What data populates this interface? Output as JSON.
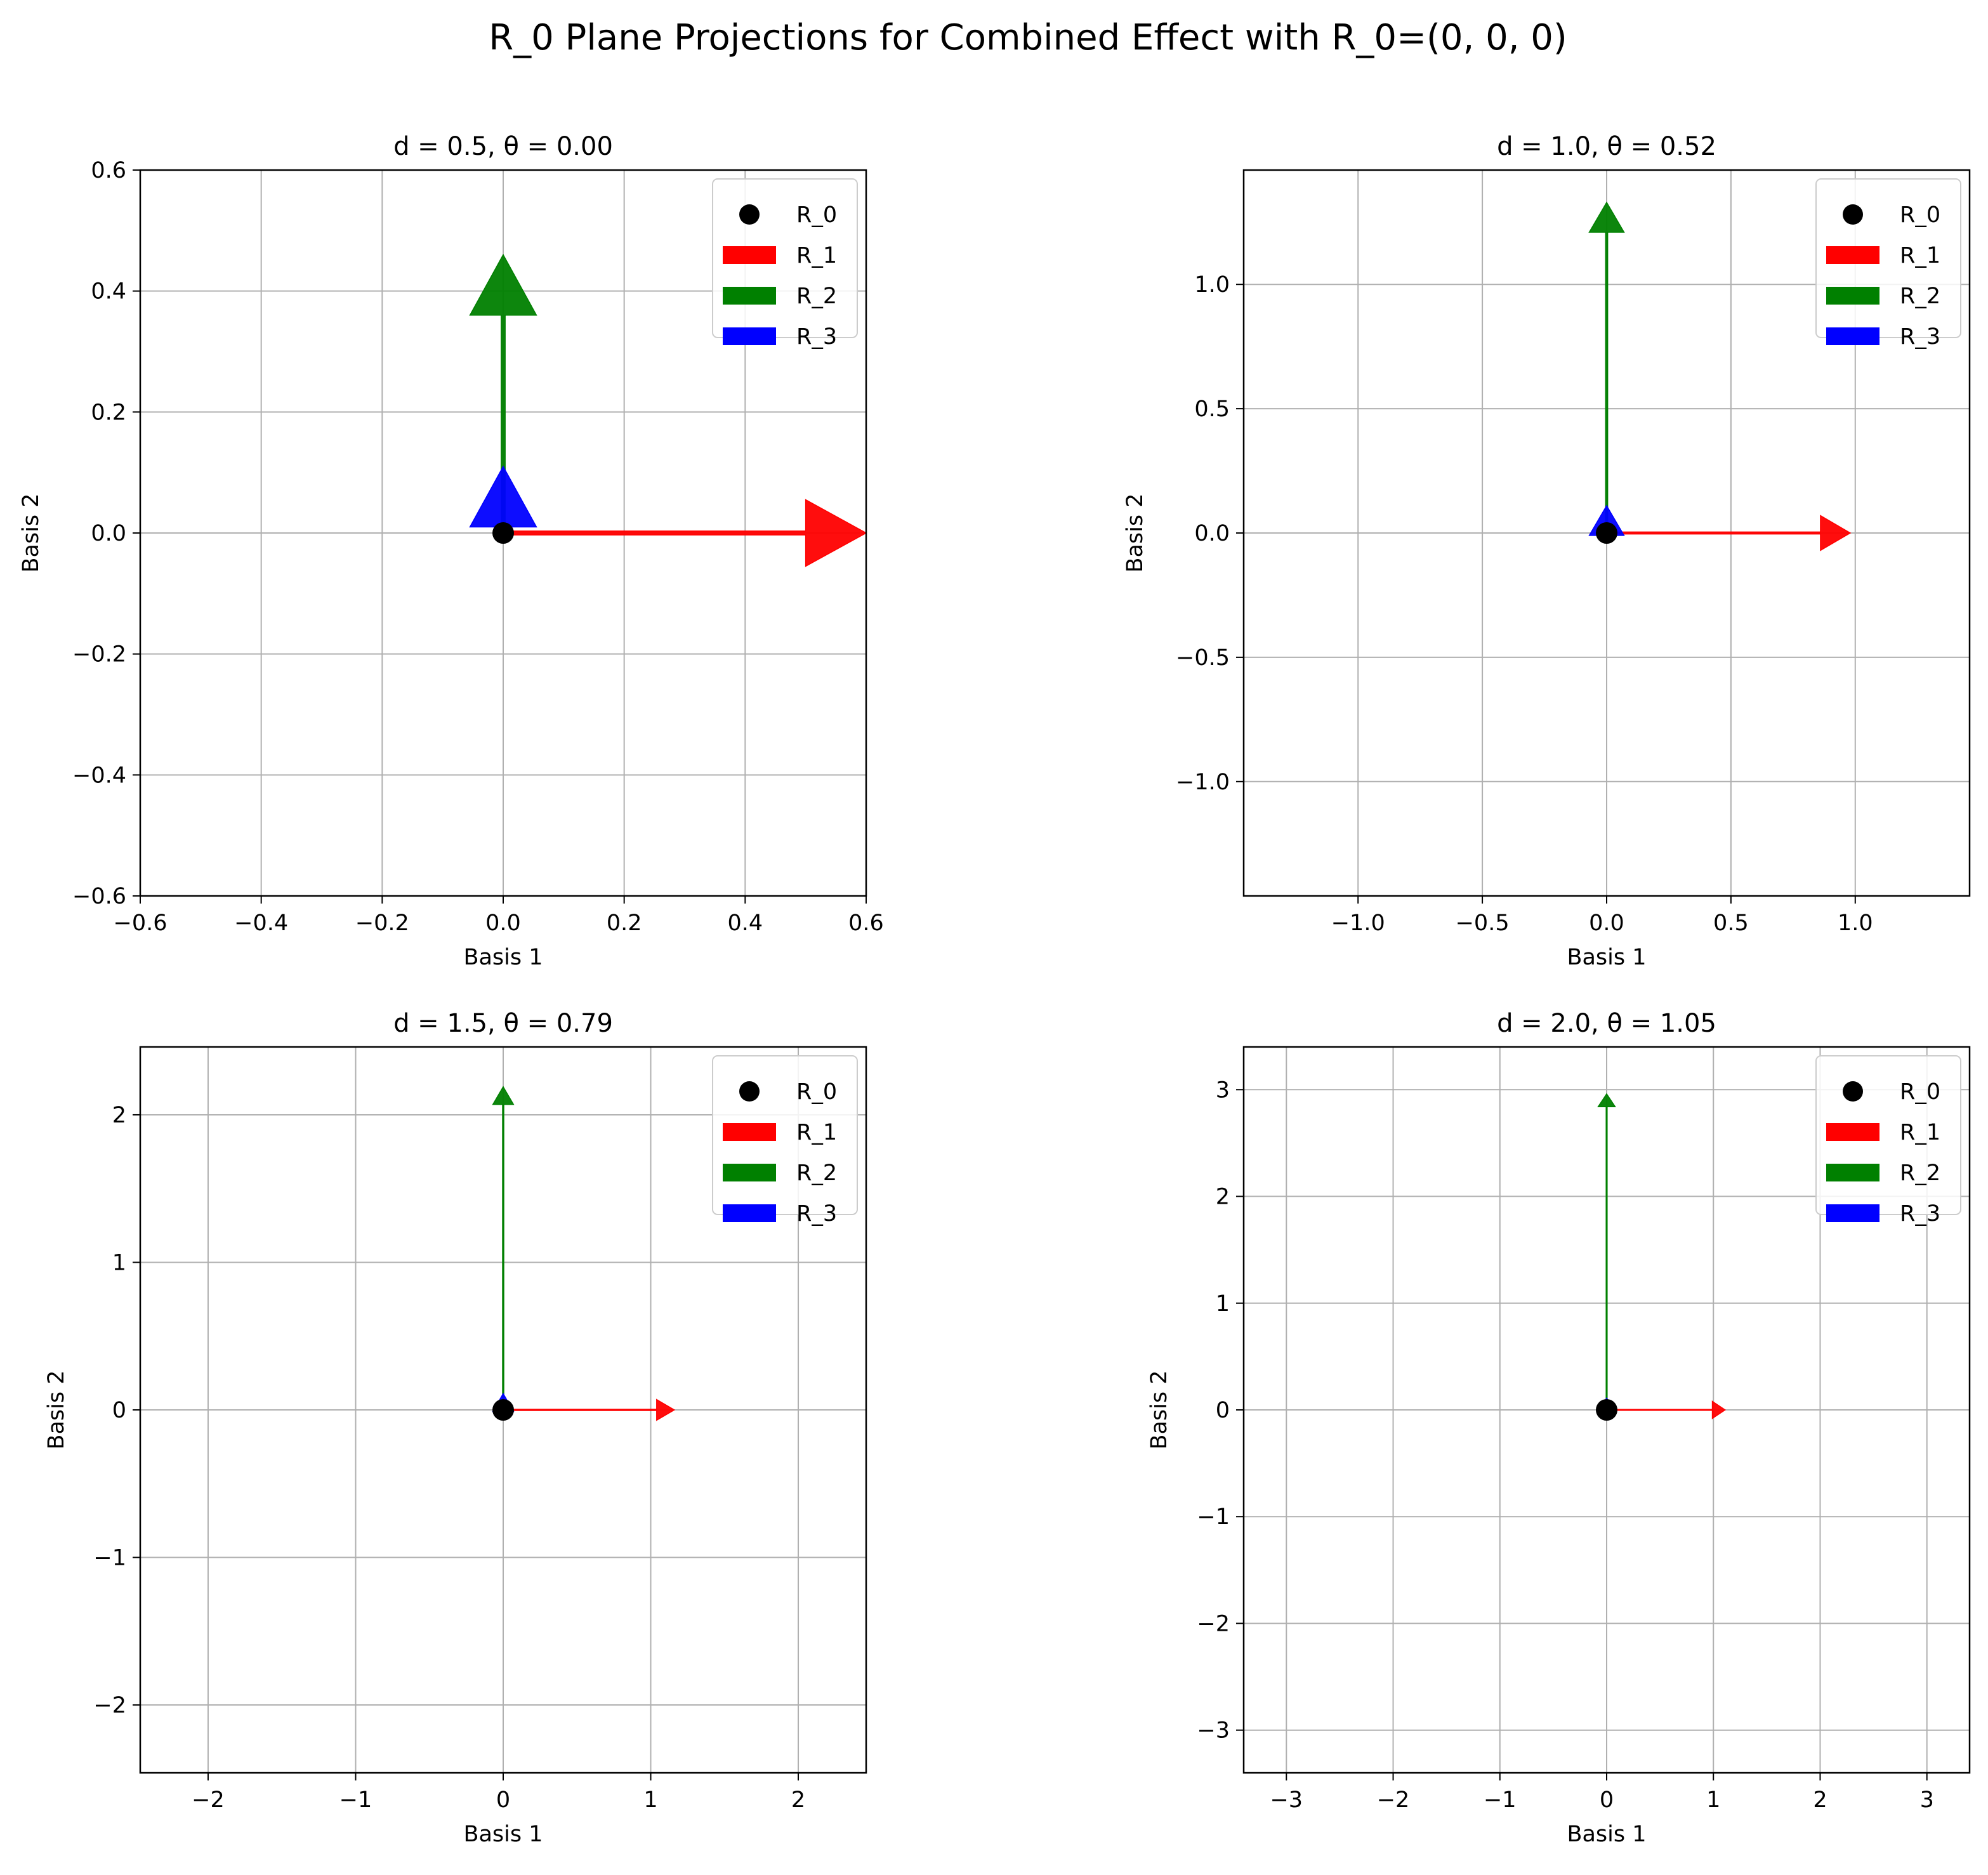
{
  "figure": {
    "title": "R_0 Plane Projections for Combined Effect with R_0=(0, 0, 0)"
  },
  "colors": {
    "R_0": "#000000",
    "R_1": "#ff0000",
    "R_2": "#008000",
    "R_3": "#0000ff",
    "grid": "#b0b0b0"
  },
  "chart_data": [
    {
      "type": "scatter",
      "title": "d = 0.5, θ = 0.00",
      "xlabel": "Basis 1",
      "ylabel": "Basis 2",
      "xlim": [
        -0.6,
        0.6
      ],
      "ylim": [
        -0.6,
        0.6
      ],
      "xticks": [
        -0.6,
        -0.4,
        -0.2,
        0.0,
        0.2,
        0.4,
        0.6
      ],
      "xtick_labels": [
        "−0.6",
        "−0.4",
        "−0.2",
        "0.0",
        "0.2",
        "0.4",
        "0.6"
      ],
      "yticks": [
        -0.6,
        -0.4,
        -0.2,
        0.0,
        0.2,
        0.4,
        0.6
      ],
      "ytick_labels": [
        "−0.6",
        "−0.4",
        "−0.2",
        "0.0",
        "0.2",
        "0.4",
        "0.6"
      ],
      "grid": true,
      "legend": "top-right",
      "origin": {
        "name": "R_0",
        "x": 0,
        "y": 0
      },
      "vectors": [
        {
          "name": "R_1",
          "dx": 0.6,
          "dy": 0.0
        },
        {
          "name": "R_2",
          "dx": 0.0,
          "dy": 0.46
        },
        {
          "name": "R_3",
          "dx": 0.0,
          "dy": 0.11
        }
      ],
      "head_width": 0.055,
      "head_length": 0.1
    },
    {
      "type": "scatter",
      "title": "d = 1.0, θ = 0.52",
      "xlabel": "Basis 1",
      "ylabel": "Basis 2",
      "xlim": [
        -1.46,
        1.46
      ],
      "ylim": [
        -1.46,
        1.46
      ],
      "xticks": [
        -1.0,
        -0.5,
        0.0,
        0.5,
        1.0
      ],
      "xtick_labels": [
        "−1.0",
        "−0.5",
        "0.0",
        "0.5",
        "1.0"
      ],
      "yticks": [
        -1.0,
        -0.5,
        0.0,
        0.5,
        1.0
      ],
      "ytick_labels": [
        "−1.0",
        "−0.5",
        "0.0",
        "0.5",
        "1.0"
      ],
      "grid": true,
      "legend": "top-right",
      "origin": {
        "name": "R_0",
        "x": 0,
        "y": 0
      },
      "vectors": [
        {
          "name": "R_1",
          "dx": 0.98,
          "dy": 0.0
        },
        {
          "name": "R_2",
          "dx": 0.0,
          "dy": 1.33
        },
        {
          "name": "R_3",
          "dx": 0.0,
          "dy": 0.11
        }
      ],
      "head_width": 0.07,
      "head_length": 0.12
    },
    {
      "type": "scatter",
      "title": "d = 1.5, θ = 0.79",
      "xlabel": "Basis 1",
      "ylabel": "Basis 2",
      "xlim": [
        -2.46,
        2.46
      ],
      "ylim": [
        -2.46,
        2.46
      ],
      "xticks": [
        -2,
        -1,
        0,
        1,
        2
      ],
      "xtick_labels": [
        "−2",
        "−1",
        "0",
        "1",
        "2"
      ],
      "yticks": [
        -2,
        -1,
        0,
        1,
        2
      ],
      "ytick_labels": [
        "−2",
        "−1",
        "0",
        "1",
        "2"
      ],
      "grid": true,
      "legend": "top-right",
      "origin": {
        "name": "R_0",
        "x": 0,
        "y": 0
      },
      "vectors": [
        {
          "name": "R_1",
          "dx": 1.16,
          "dy": 0.0
        },
        {
          "name": "R_2",
          "dx": 0.0,
          "dy": 2.19
        },
        {
          "name": "R_3",
          "dx": 0.0,
          "dy": 0.11
        }
      ],
      "head_width": 0.07,
      "head_length": 0.12
    },
    {
      "type": "scatter",
      "title": "d = 2.0, θ = 1.05",
      "xlabel": "Basis 1",
      "ylabel": "Basis 2",
      "xlim": [
        -3.4,
        3.4
      ],
      "ylim": [
        -3.4,
        3.4
      ],
      "xticks": [
        -3,
        -2,
        -1,
        0,
        1,
        2,
        3
      ],
      "xtick_labels": [
        "−3",
        "−2",
        "−1",
        "0",
        "1",
        "2",
        "3"
      ],
      "yticks": [
        -3,
        -2,
        -1,
        0,
        1,
        2,
        3
      ],
      "ytick_labels": [
        "−3",
        "−2",
        "−1",
        "0",
        "1",
        "2",
        "3"
      ],
      "grid": true,
      "legend": "top-right",
      "origin": {
        "name": "R_0",
        "x": 0,
        "y": 0
      },
      "vectors": [
        {
          "name": "R_1",
          "dx": 1.11,
          "dy": 0.0
        },
        {
          "name": "R_2",
          "dx": 0.0,
          "dy": 2.96
        },
        {
          "name": "R_3",
          "dx": 0.0,
          "dy": 0.11
        }
      ],
      "head_width": 0.08,
      "head_length": 0.12
    }
  ]
}
